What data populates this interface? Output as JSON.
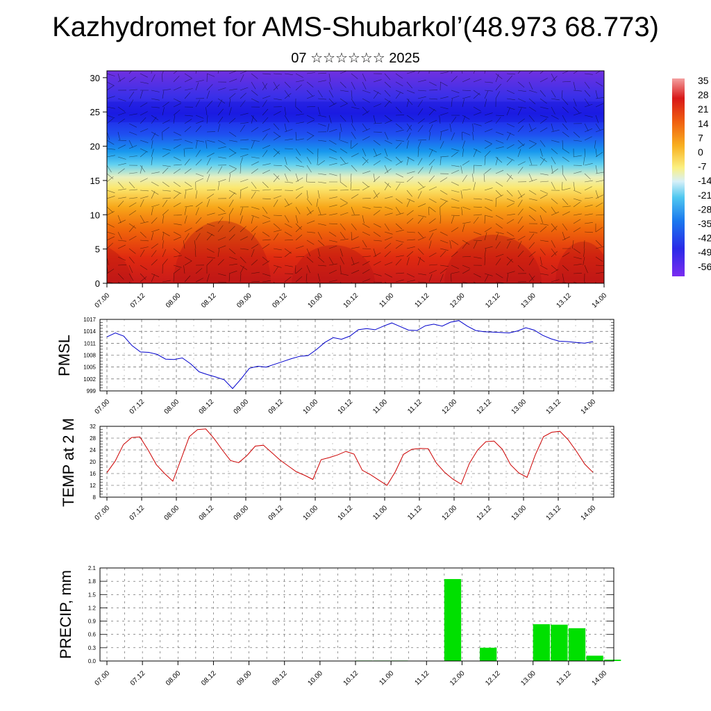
{
  "title": "Kazhydromet for AMS-Shubarkol’(48.973 68.773)",
  "subtitle": "07 ☆☆☆☆☆☆ 2025",
  "chart_data": [
    {
      "type": "heatmap",
      "x_ticks": [
        "07.00",
        "07.12",
        "08.00",
        "08.12",
        "09.00",
        "09.12",
        "10.00",
        "10.12",
        "11.00",
        "11.12",
        "12.00",
        "12.12",
        "13.00",
        "13.12",
        "14.00"
      ],
      "y_ticks": [
        "0",
        "5",
        "10",
        "15",
        "20",
        "25",
        "30"
      ],
      "ylim": [
        0,
        31
      ],
      "colorbar_labels": [
        "35",
        "28",
        "21",
        "14",
        "7",
        "0",
        "-7",
        "-14",
        "-21",
        "-28",
        "-35",
        "-42",
        "-49",
        "-56"
      ],
      "colorbar_range": [
        -63,
        42
      ]
    },
    {
      "type": "line",
      "ylabel": "PMSL",
      "ylim": [
        999,
        1017
      ],
      "y_ticks": [
        "1017",
        "1014",
        "1011",
        "1008",
        "1005",
        "1002",
        "999"
      ],
      "x_ticks": [
        "07.00",
        "07.12",
        "08.00",
        "08.12",
        "09.00",
        "09.12",
        "10.00",
        "10.12",
        "11.00",
        "11.12",
        "12.00",
        "12.12",
        "13.00",
        "13.12",
        "14.00"
      ],
      "color": "#0000cc",
      "series": [
        {
          "values": [
            1012.6,
            1013.6,
            1012.8,
            1010.4,
            1008.8,
            1008.7,
            1008.2,
            1007.0,
            1006.9,
            1007.3,
            1005.8,
            1003.8,
            1003.1,
            1002.5,
            1001.8,
            999.6,
            1002.0,
            1004.7,
            1005.2,
            1005.0,
            1005.7,
            1006.4,
            1007.1,
            1007.7,
            1007.9,
            1009.4,
            1011.2,
            1012.4,
            1012.0,
            1012.8,
            1014.4,
            1014.7,
            1014.4,
            1015.3,
            1016.1,
            1015.2,
            1014.3,
            1014.2,
            1015.4,
            1015.8,
            1015.3,
            1016.3,
            1016.7,
            1015.3,
            1014.2,
            1013.9,
            1013.8,
            1013.7,
            1013.6,
            1014.1,
            1014.9,
            1014.3,
            1013.0,
            1012.1,
            1011.5,
            1011.4,
            1011.2,
            1011.0,
            1011.4
          ]
        }
      ]
    },
    {
      "type": "line",
      "ylabel": "TEMP at 2 M",
      "ylim": [
        8,
        32
      ],
      "y_ticks": [
        "32",
        "28",
        "24",
        "20",
        "16",
        "12",
        "8"
      ],
      "x_ticks": [
        "07.00",
        "07.12",
        "08.00",
        "08.12",
        "09.00",
        "09.12",
        "10.00",
        "10.12",
        "11.00",
        "11.12",
        "12.00",
        "12.12",
        "13.00",
        "13.12",
        "14.00"
      ],
      "color": "#cc0000",
      "series": [
        {
          "values": [
            16.3,
            20.2,
            25.8,
            28.2,
            28.4,
            24.0,
            19.0,
            16.0,
            13.4,
            20.9,
            28.5,
            30.9,
            31.1,
            27.9,
            24.0,
            20.4,
            19.7,
            22.1,
            25.3,
            25.6,
            23.1,
            20.6,
            18.6,
            16.6,
            15.4,
            14.0,
            20.7,
            21.4,
            22.3,
            23.5,
            22.6,
            17.1,
            15.6,
            13.8,
            12.0,
            16.6,
            22.5,
            24.2,
            24.5,
            24.4,
            19.5,
            16.4,
            14.1,
            12.4,
            19.4,
            24.0,
            26.8,
            27.0,
            24.2,
            19.0,
            16.2,
            14.7,
            22.3,
            28.5,
            30.0,
            30.3,
            27.4,
            23.5,
            19.2,
            16.4
          ]
        }
      ]
    },
    {
      "type": "bar",
      "ylabel": "PRECIP, mm",
      "ylim": [
        0,
        2.1
      ],
      "y_ticks": [
        "2.1",
        "1.8",
        "1.5",
        "1.2",
        "0.9",
        "0.6",
        "0.3",
        "0.0"
      ],
      "x_ticks": [
        "07.00",
        "07.12",
        "08.00",
        "08.12",
        "09.00",
        "09.12",
        "10.00",
        "10.12",
        "11.00",
        "11.12",
        "12.00",
        "12.12",
        "13.00",
        "13.12",
        "14.00"
      ],
      "color": "#00e000",
      "bars": [
        {
          "x": 7.5,
          "value": 0.01
        },
        {
          "x": 8.0,
          "value": 0.01
        },
        {
          "x": 8.5,
          "value": 0.01
        },
        {
          "x": 10.0,
          "value": 1.85
        },
        {
          "x": 11.0,
          "value": 0.3
        },
        {
          "x": 12.5,
          "value": 0.83
        },
        {
          "x": 13.0,
          "value": 0.82
        },
        {
          "x": 13.5,
          "value": 0.74
        },
        {
          "x": 14.0,
          "value": 0.12
        },
        {
          "x": 14.5,
          "value": 0.03
        }
      ]
    }
  ]
}
